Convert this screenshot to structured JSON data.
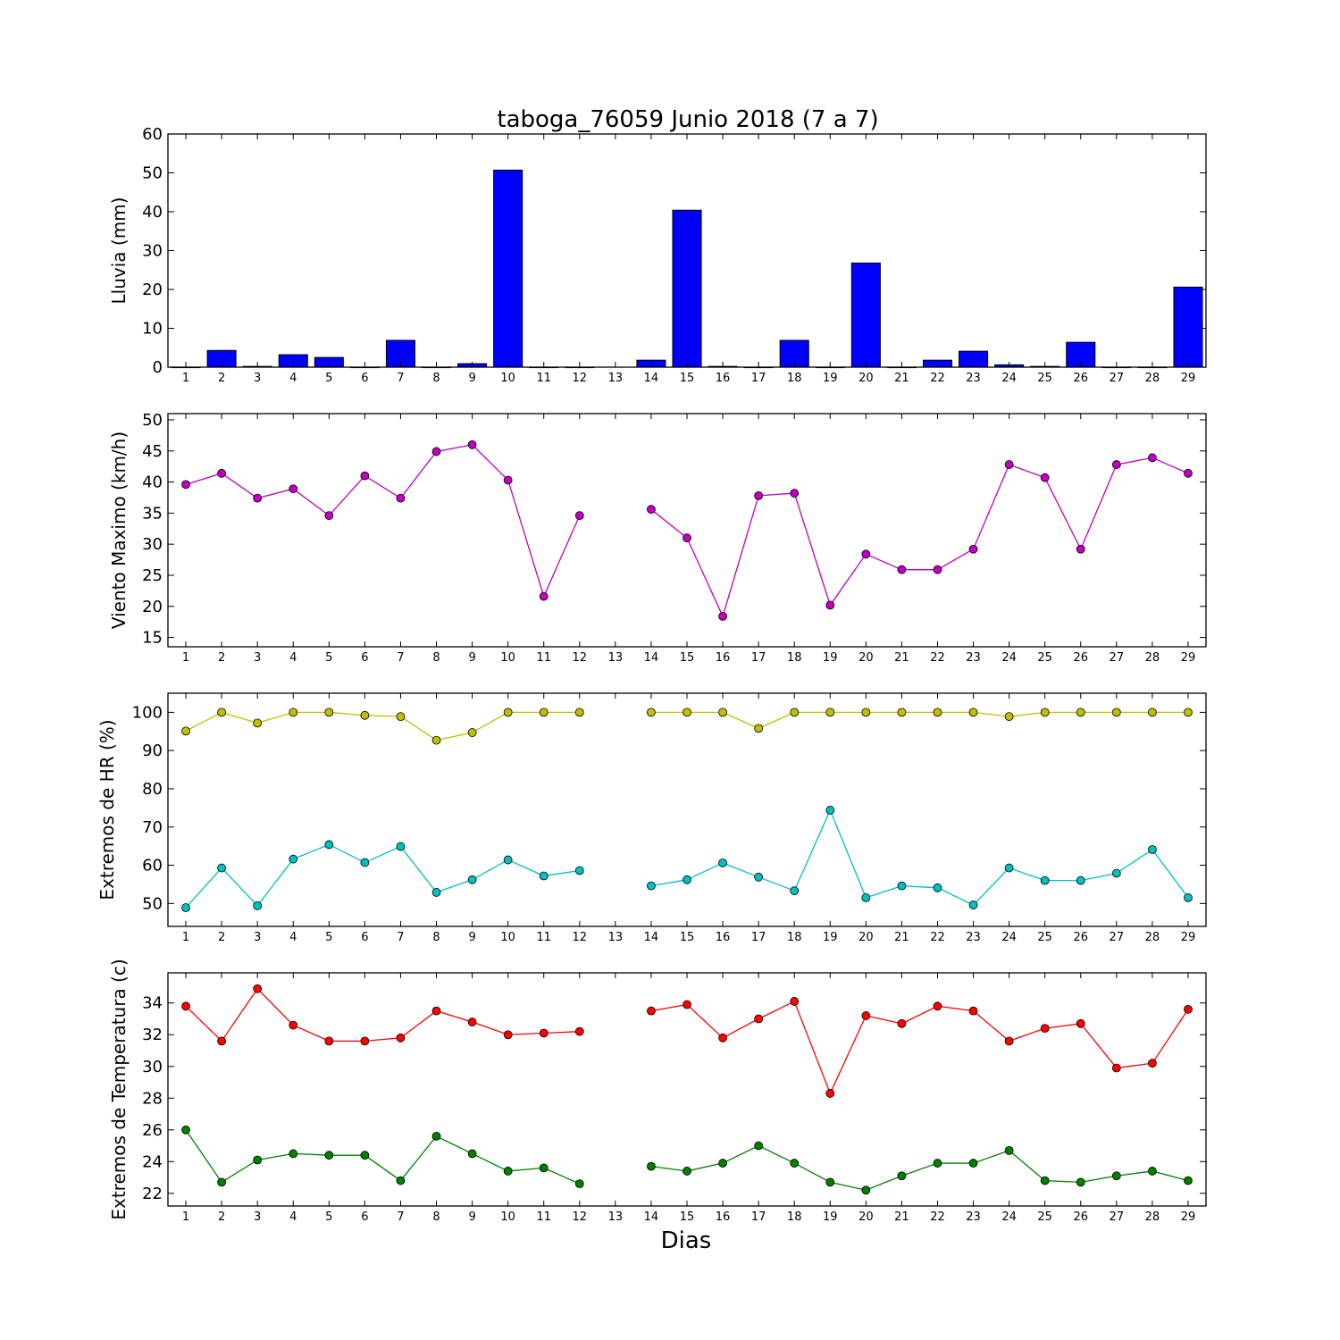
{
  "chart_data": {
    "title": "taboga_76059 Junio 2018  (7 a 7)",
    "xlabel": "Dias",
    "days": [
      1,
      2,
      3,
      4,
      5,
      6,
      7,
      8,
      9,
      10,
      11,
      12,
      13,
      14,
      15,
      16,
      17,
      18,
      19,
      20,
      21,
      22,
      23,
      24,
      25,
      26,
      27,
      28,
      29
    ],
    "panels": [
      {
        "type": "bar",
        "ylabel": "Lluvia (mm)",
        "ylim": [
          0,
          60
        ],
        "yticks": [
          0,
          10,
          20,
          30,
          40,
          50,
          60
        ],
        "series": [
          {
            "color": "#0000ff",
            "values": [
              0,
              4.3,
              0.2,
              3.2,
              2.5,
              0,
              6.9,
              0,
              0.9,
              50.7,
              0,
              0,
              null,
              1.8,
              40.4,
              0.2,
              0,
              6.9,
              0,
              26.8,
              0,
              1.8,
              4.1,
              0.6,
              0.2,
              6.4,
              0,
              0,
              20.6
            ]
          }
        ]
      },
      {
        "type": "line",
        "ylabel": "Viento Maximo (km/h)",
        "ylim": [
          13.5,
          51
        ],
        "yticks": [
          15,
          20,
          25,
          30,
          35,
          40,
          45,
          50
        ],
        "series": [
          {
            "color": "#bf00bf",
            "values": [
              39.6,
              41.4,
              37.4,
              38.9,
              34.6,
              41.0,
              37.4,
              44.9,
              46.0,
              40.3,
              21.6,
              34.6,
              null,
              35.6,
              31.0,
              18.4,
              37.8,
              38.2,
              20.2,
              28.4,
              25.9,
              25.9,
              29.2,
              42.8,
              40.7,
              29.2,
              42.8,
              43.9,
              41.4
            ]
          }
        ]
      },
      {
        "type": "line",
        "ylabel": "Extremos de HR (%)",
        "ylim": [
          44,
          105
        ],
        "yticks": [
          50,
          60,
          70,
          80,
          90,
          100
        ],
        "series": [
          {
            "color": "#bfbf00",
            "values": [
              95.1,
              100,
              97.2,
              100,
              100,
              99.2,
              98.9,
              92.7,
              94.7,
              100,
              100,
              100,
              null,
              100,
              100,
              100,
              95.8,
              100,
              100,
              100,
              100,
              100,
              100,
              98.9,
              100,
              100,
              100,
              100,
              100
            ]
          },
          {
            "color": "#00bfbf",
            "values": [
              48.9,
              59.3,
              49.4,
              61.6,
              65.4,
              60.7,
              64.9,
              52.9,
              56.2,
              61.4,
              57.2,
              58.6,
              null,
              54.6,
              56.2,
              60.6,
              56.9,
              53.3,
              74.4,
              51.5,
              54.6,
              54.1,
              49.6,
              59.3,
              56.0,
              56.0,
              57.9,
              64.1,
              51.5
            ]
          }
        ]
      },
      {
        "type": "line",
        "ylabel": "Extremos de Temperatura (c)",
        "ylim": [
          21.2,
          35.9
        ],
        "yticks": [
          22,
          24,
          26,
          28,
          30,
          32,
          34
        ],
        "series": [
          {
            "color": "#ff0000",
            "values": [
              33.8,
              31.6,
              34.9,
              32.6,
              31.6,
              31.6,
              31.8,
              33.5,
              32.8,
              32.0,
              32.1,
              32.2,
              null,
              33.5,
              33.9,
              31.8,
              33.0,
              34.1,
              28.3,
              33.2,
              32.7,
              33.8,
              33.5,
              31.6,
              32.4,
              32.7,
              29.9,
              30.2,
              33.6
            ]
          },
          {
            "color": "#007f00",
            "values": [
              26.0,
              22.7,
              24.1,
              24.5,
              24.4,
              24.4,
              22.8,
              25.6,
              24.5,
              23.4,
              23.6,
              22.6,
              null,
              23.7,
              23.4,
              23.9,
              25.0,
              23.9,
              22.7,
              22.2,
              23.1,
              23.9,
              23.9,
              24.7,
              22.8,
              22.7,
              23.1,
              23.4,
              22.8
            ]
          }
        ]
      }
    ]
  }
}
